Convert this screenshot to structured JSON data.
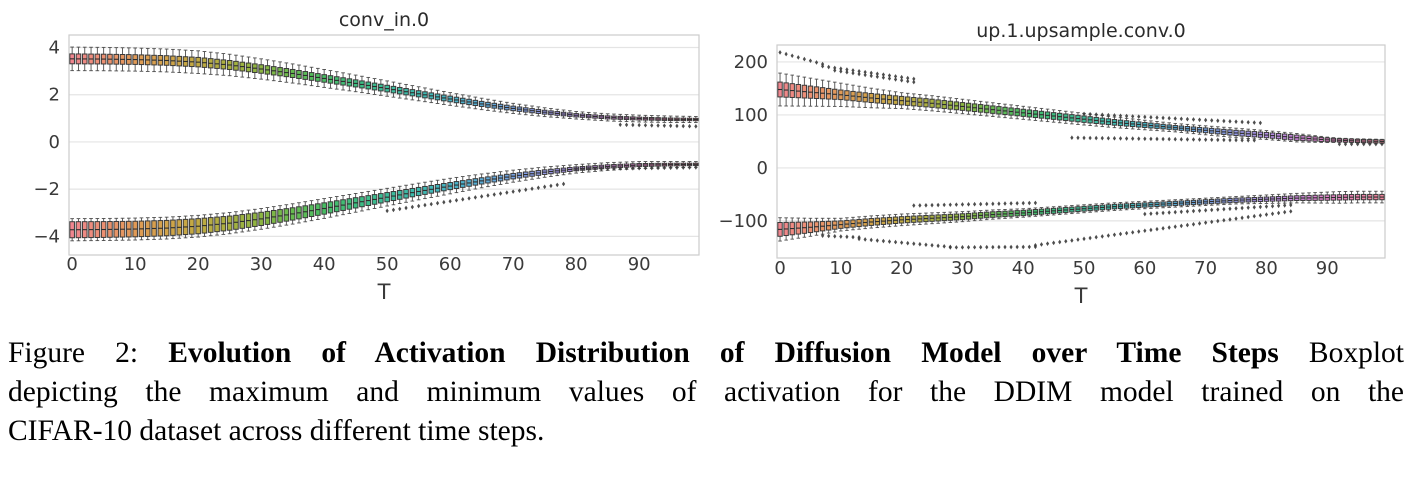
{
  "figure": {
    "caption": {
      "lines": [
        {
          "justify": true,
          "segments": [
            {
              "text": "Figure 2: ",
              "bold": false
            },
            {
              "text": "Evolution of Activation Distribution of Diffusion Model over Time Steps",
              "bold": true
            },
            {
              "text": " Boxplot",
              "bold": false
            }
          ]
        },
        {
          "justify": true,
          "segments": [
            {
              "text": "depicting the maximum and minimum values of activation for the DDIM model trained on the",
              "bold": false
            }
          ]
        },
        {
          "justify": false,
          "segments": [
            {
              "text": "CIFAR-10 dataset across different time steps.",
              "bold": false
            }
          ]
        }
      ]
    }
  },
  "chart_data": [
    {
      "type": "boxplot-series",
      "title": "conv_in.0",
      "xlabel": "T",
      "x": "time step T, one boxplot per step 0..99",
      "n_boxes": 100,
      "x_ticks": [
        0,
        10,
        20,
        30,
        40,
        50,
        60,
        70,
        80,
        90
      ],
      "y_ticks": [
        {
          "v": 4,
          "label": "4"
        },
        {
          "v": 2,
          "label": "2"
        },
        {
          "v": 0,
          "label": "0"
        },
        {
          "v": -2,
          "label": "−2"
        },
        {
          "v": -4,
          "label": "−4"
        }
      ],
      "ylim": [
        -4.79,
        4.53
      ],
      "grid": "horizontal",
      "legend": "none",
      "bands": [
        {
          "name": "max-activation",
          "median_keyframes": [
            [
              0,
              3.52
            ],
            [
              5,
              3.51
            ],
            [
              10,
              3.49
            ],
            [
              15,
              3.45
            ],
            [
              20,
              3.38
            ],
            [
              25,
              3.26
            ],
            [
              30,
              3.09
            ],
            [
              35,
              2.9
            ],
            [
              40,
              2.69
            ],
            [
              45,
              2.48
            ],
            [
              50,
              2.26
            ],
            [
              55,
              2.04
            ],
            [
              60,
              1.82
            ],
            [
              65,
              1.61
            ],
            [
              70,
              1.42
            ],
            [
              75,
              1.26
            ],
            [
              80,
              1.13
            ],
            [
              85,
              1.04
            ],
            [
              90,
              0.99
            ],
            [
              95,
              0.96
            ],
            [
              99,
              0.95
            ]
          ],
          "iqr_half_keyframes": [
            [
              0,
              0.21
            ],
            [
              20,
              0.2
            ],
            [
              40,
              0.16
            ],
            [
              60,
              0.12
            ],
            [
              80,
              0.07
            ],
            [
              99,
              0.05
            ]
          ],
          "whisker_half_keyframes": [
            [
              0,
              0.5
            ],
            [
              20,
              0.48
            ],
            [
              40,
              0.38
            ],
            [
              60,
              0.27
            ],
            [
              80,
              0.16
            ],
            [
              99,
              0.13
            ]
          ]
        },
        {
          "name": "min-activation",
          "median_keyframes": [
            [
              0,
              -3.72
            ],
            [
              5,
              -3.71
            ],
            [
              10,
              -3.69
            ],
            [
              15,
              -3.65
            ],
            [
              20,
              -3.57
            ],
            [
              25,
              -3.44
            ],
            [
              30,
              -3.26
            ],
            [
              35,
              -3.05
            ],
            [
              40,
              -2.82
            ],
            [
              45,
              -2.58
            ],
            [
              50,
              -2.34
            ],
            [
              55,
              -2.1
            ],
            [
              60,
              -1.87
            ],
            [
              65,
              -1.65
            ],
            [
              70,
              -1.45
            ],
            [
              75,
              -1.28
            ],
            [
              80,
              -1.14
            ],
            [
              85,
              -1.04
            ],
            [
              90,
              -0.98
            ],
            [
              95,
              -0.96
            ],
            [
              99,
              -0.95
            ]
          ],
          "iqr_half_keyframes": [
            [
              0,
              0.34
            ],
            [
              20,
              0.32
            ],
            [
              40,
              0.24
            ],
            [
              60,
              0.15
            ],
            [
              80,
              0.08
            ],
            [
              99,
              0.05
            ]
          ],
          "whisker_half_keyframes": [
            [
              0,
              0.47
            ],
            [
              20,
              0.46
            ],
            [
              40,
              0.42
            ],
            [
              60,
              0.33
            ],
            [
              80,
              0.18
            ],
            [
              99,
              0.12
            ]
          ]
        }
      ],
      "outlier_runs": [
        {
          "t0": 50,
          "t1": 78,
          "v0": -2.92,
          "v1": -1.78
        },
        {
          "t0": 80,
          "t1": 99,
          "v0": -1.15,
          "v1": -1.08
        },
        {
          "t0": 87,
          "t1": 99,
          "v0": 0.73,
          "v1": 0.66
        }
      ]
    },
    {
      "type": "boxplot-series",
      "title": "up.1.upsample.conv.0",
      "xlabel": "T",
      "x": "time step T, one boxplot per step 0..99",
      "n_boxes": 100,
      "x_ticks": [
        0,
        10,
        20,
        30,
        40,
        50,
        60,
        70,
        80,
        90
      ],
      "y_ticks": [
        {
          "v": 200,
          "label": "200"
        },
        {
          "v": 100,
          "label": "100"
        },
        {
          "v": 0,
          "label": "0"
        },
        {
          "v": -100,
          "label": "−100"
        }
      ],
      "ylim": [
        -170,
        232
      ],
      "grid": "horizontal",
      "legend": "none",
      "bands": [
        {
          "name": "max-activation",
          "median_keyframes": [
            [
              0,
              148
            ],
            [
              5,
              143
            ],
            [
              10,
              138
            ],
            [
              15,
              132
            ],
            [
              20,
              127
            ],
            [
              25,
              122
            ],
            [
              30,
              116
            ],
            [
              35,
              110
            ],
            [
              40,
              104
            ],
            [
              45,
              98
            ],
            [
              50,
              92
            ],
            [
              55,
              86
            ],
            [
              60,
              81
            ],
            [
              65,
              76
            ],
            [
              70,
              71
            ],
            [
              75,
              66
            ],
            [
              80,
              62
            ],
            [
              85,
              57
            ],
            [
              90,
              53
            ],
            [
              95,
              51
            ],
            [
              99,
              50
            ]
          ],
          "iqr_half_keyframes": [
            [
              0,
              14
            ],
            [
              10,
              9
            ],
            [
              20,
              8
            ],
            [
              35,
              7
            ],
            [
              50,
              6
            ],
            [
              65,
              4
            ],
            [
              75,
              5
            ],
            [
              85,
              5
            ],
            [
              92,
              3
            ],
            [
              99,
              3
            ]
          ],
          "whisker_half_keyframes": [
            [
              0,
              31
            ],
            [
              10,
              22
            ],
            [
              20,
              15
            ],
            [
              35,
              13
            ],
            [
              50,
              11
            ],
            [
              65,
              8
            ],
            [
              75,
              9
            ],
            [
              85,
              8
            ],
            [
              92,
              4
            ],
            [
              99,
              4
            ]
          ]
        },
        {
          "name": "min-activation",
          "median_keyframes": [
            [
              0,
              -116
            ],
            [
              5,
              -112
            ],
            [
              10,
              -107
            ],
            [
              15,
              -102
            ],
            [
              20,
              -98
            ],
            [
              25,
              -95
            ],
            [
              30,
              -92
            ],
            [
              35,
              -88
            ],
            [
              40,
              -85
            ],
            [
              45,
              -81
            ],
            [
              50,
              -77
            ],
            [
              55,
              -73
            ],
            [
              60,
              -70
            ],
            [
              65,
              -67
            ],
            [
              70,
              -64
            ],
            [
              75,
              -61
            ],
            [
              80,
              -59
            ],
            [
              85,
              -57
            ],
            [
              90,
              -56
            ],
            [
              95,
              -55
            ],
            [
              99,
              -55
            ]
          ],
          "iqr_half_keyframes": [
            [
              0,
              13
            ],
            [
              10,
              7
            ],
            [
              20,
              6
            ],
            [
              40,
              5
            ],
            [
              60,
              4
            ],
            [
              80,
              4
            ],
            [
              90,
              5
            ],
            [
              99,
              5
            ]
          ],
          "whisker_half_keyframes": [
            [
              0,
              22
            ],
            [
              10,
              12
            ],
            [
              20,
              11
            ],
            [
              40,
              8
            ],
            [
              60,
              7
            ],
            [
              75,
              7
            ],
            [
              85,
              9
            ],
            [
              92,
              11
            ],
            [
              99,
              11
            ]
          ]
        }
      ],
      "outlier_runs": [
        {
          "t0": 0,
          "t1": 7,
          "v0": 218,
          "v1": 196
        },
        {
          "t0": 7,
          "t1": 22,
          "v0": 192,
          "v1": 168
        },
        {
          "t0": 9,
          "t1": 22,
          "v0": 184,
          "v1": 162
        },
        {
          "t0": 50,
          "t1": 79,
          "v0": 102,
          "v1": 85
        },
        {
          "t0": 48,
          "t1": 78,
          "v0": 57,
          "v1": 52
        },
        {
          "t0": 92,
          "t1": 99,
          "v0": 45,
          "v1": 45
        },
        {
          "t0": 7,
          "t1": 13,
          "v0": -128,
          "v1": -131
        },
        {
          "t0": 13,
          "t1": 28,
          "v0": -134,
          "v1": -149
        },
        {
          "t0": 28,
          "t1": 42,
          "v0": -150,
          "v1": -149
        },
        {
          "t0": 42,
          "t1": 84,
          "v0": -146,
          "v1": -82
        },
        {
          "t0": 60,
          "t1": 84,
          "v0": -87,
          "v1": -70
        },
        {
          "t0": 22,
          "t1": 42,
          "v0": -71,
          "v1": -66
        }
      ]
    }
  ],
  "style": {
    "palette_keyframes": [
      "#f0868f",
      "#ec9072",
      "#e09a56",
      "#d2a349",
      "#c0a942",
      "#a8b03f",
      "#8cb542",
      "#66ba4f",
      "#48bc63",
      "#3dbd80",
      "#3abc99",
      "#3db9ae",
      "#46b3c4",
      "#58abd6",
      "#77a3e4",
      "#959ae9",
      "#b28ee5",
      "#cc85dc",
      "#e27fc9",
      "#ed82ac",
      "#f18697"
    ],
    "palette_step": 5,
    "grid_color": "#e4e4e4",
    "spine_color": "#cccccc",
    "box_edge_color": "#3a3a3a",
    "whisker_color": "#4d4d4d",
    "median_color": "#2e2e2e",
    "outlier_color": "#3a3a3a",
    "tick_label_color": "#3a3a3a",
    "title_color": "#2b2b2b",
    "background": "#ffffff"
  }
}
